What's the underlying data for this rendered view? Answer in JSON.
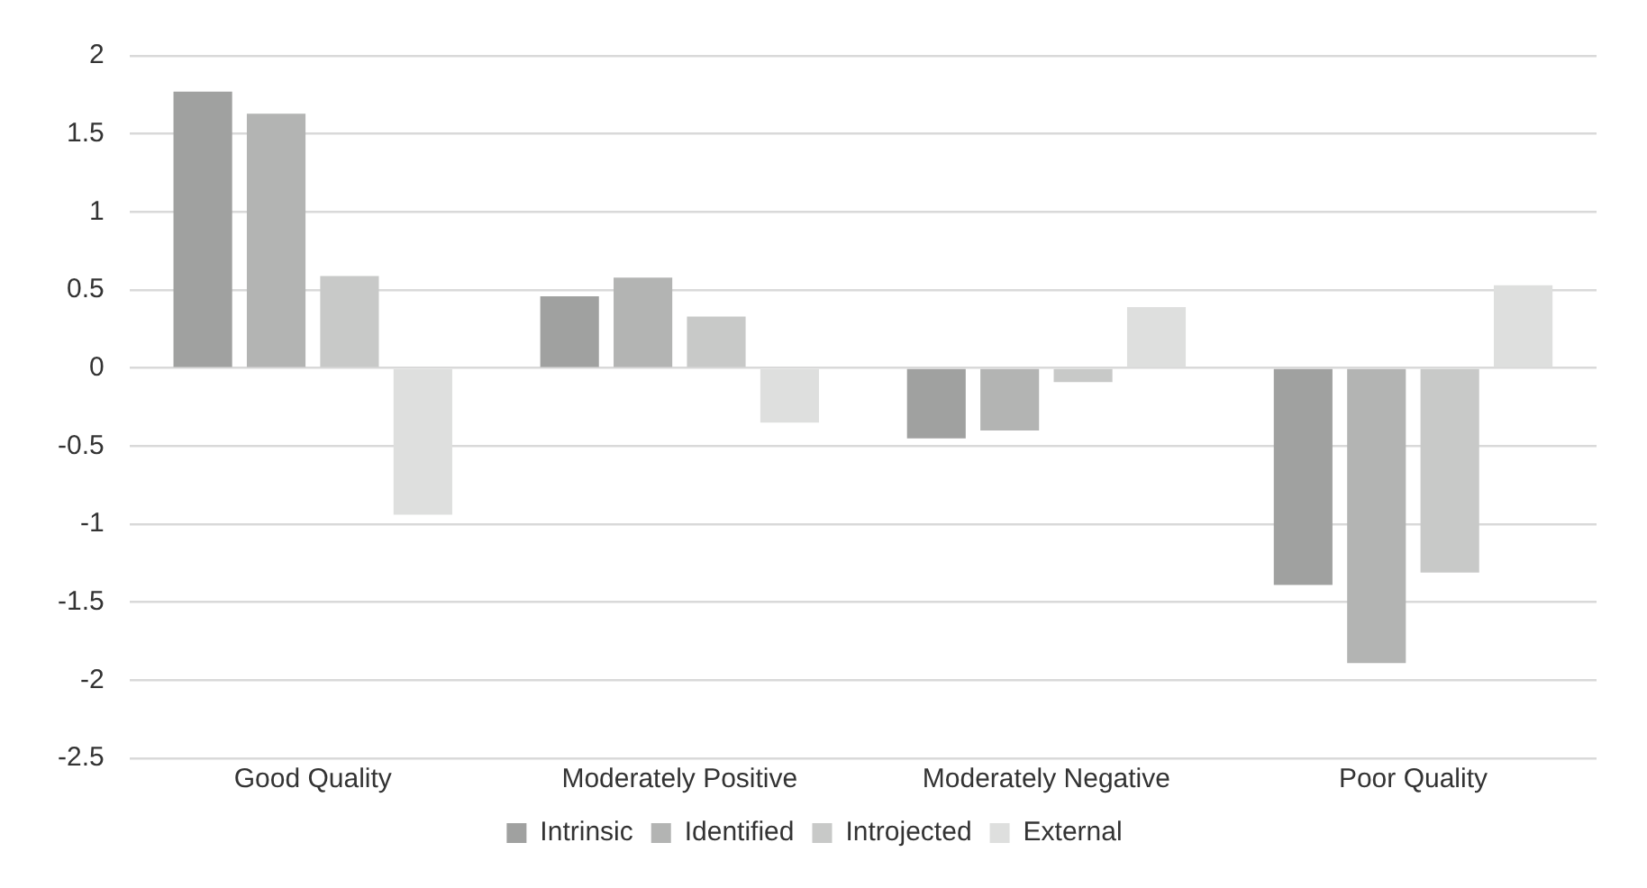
{
  "chart_data": {
    "type": "bar",
    "categories": [
      "Good Quality",
      "Moderately Positive",
      "Moderately Negative",
      "Poor Quality"
    ],
    "series": [
      {
        "name": "Intrinsic",
        "color": "#a0a1a0",
        "values": [
          1.77,
          0.46,
          -0.45,
          -1.39
        ]
      },
      {
        "name": "Identified",
        "color": "#b3b4b3",
        "values": [
          1.63,
          0.58,
          -0.4,
          -1.89
        ]
      },
      {
        "name": "Introjected",
        "color": "#c8c9c8",
        "values": [
          0.59,
          0.33,
          -0.09,
          -1.31
        ]
      },
      {
        "name": "External",
        "color": "#dedfde",
        "values": [
          -0.94,
          -0.35,
          0.39,
          0.53
        ]
      }
    ],
    "ylim": [
      -2.5,
      2
    ],
    "yticks": [
      -2.5,
      -2,
      -1.5,
      -1,
      -0.5,
      0,
      0.5,
      1,
      1.5,
      2
    ],
    "grid": "y",
    "legend": "bottom"
  }
}
